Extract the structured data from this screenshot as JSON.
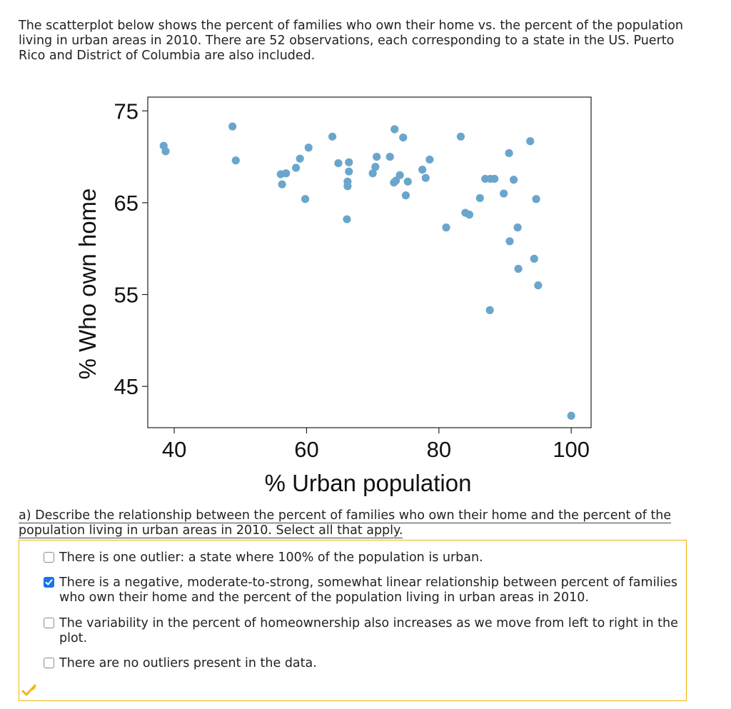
{
  "intro": {
    "text": "The scatterplot below shows the percent of families who own their home vs. the percent of the population living in urban areas in 2010. There are 52 observations, each corresponding to a state in the US. Puerto Rico and District of Columbia are also included."
  },
  "chart_data": {
    "type": "scatter",
    "title": "",
    "xlabel": "% Urban population",
    "ylabel": "% Who own home",
    "xlim": [
      36,
      103
    ],
    "ylim": [
      40.5,
      76.5
    ],
    "x_ticks": [
      40,
      60,
      80,
      100
    ],
    "y_ticks": [
      45,
      55,
      65,
      75
    ],
    "grid": false,
    "point_color": "#6aa6cc",
    "points": [
      {
        "x": 38.4,
        "y": 71.2
      },
      {
        "x": 38.7,
        "y": 70.6
      },
      {
        "x": 48.8,
        "y": 73.3
      },
      {
        "x": 49.3,
        "y": 69.6
      },
      {
        "x": 56.1,
        "y": 68.1
      },
      {
        "x": 56.3,
        "y": 67.0
      },
      {
        "x": 56.9,
        "y": 68.2
      },
      {
        "x": 58.4,
        "y": 68.8
      },
      {
        "x": 59.0,
        "y": 69.8
      },
      {
        "x": 59.8,
        "y": 65.4
      },
      {
        "x": 60.3,
        "y": 71.0
      },
      {
        "x": 63.9,
        "y": 72.2
      },
      {
        "x": 64.8,
        "y": 69.3
      },
      {
        "x": 66.1,
        "y": 63.2
      },
      {
        "x": 66.2,
        "y": 66.8
      },
      {
        "x": 66.2,
        "y": 67.3
      },
      {
        "x": 66.4,
        "y": 68.4
      },
      {
        "x": 66.4,
        "y": 69.4
      },
      {
        "x": 70.0,
        "y": 68.2
      },
      {
        "x": 70.4,
        "y": 68.9
      },
      {
        "x": 70.6,
        "y": 70.0
      },
      {
        "x": 72.6,
        "y": 70.0
      },
      {
        "x": 73.2,
        "y": 67.2
      },
      {
        "x": 73.3,
        "y": 73.0
      },
      {
        "x": 73.5,
        "y": 67.4
      },
      {
        "x": 74.1,
        "y": 68.0
      },
      {
        "x": 74.6,
        "y": 72.1
      },
      {
        "x": 75.0,
        "y": 65.8
      },
      {
        "x": 75.3,
        "y": 67.3
      },
      {
        "x": 77.5,
        "y": 68.6
      },
      {
        "x": 78.0,
        "y": 67.7
      },
      {
        "x": 78.6,
        "y": 69.7
      },
      {
        "x": 81.1,
        "y": 62.3
      },
      {
        "x": 83.3,
        "y": 72.2
      },
      {
        "x": 84.0,
        "y": 63.9
      },
      {
        "x": 84.6,
        "y": 63.7
      },
      {
        "x": 86.2,
        "y": 65.5
      },
      {
        "x": 87.0,
        "y": 67.6
      },
      {
        "x": 87.7,
        "y": 53.3
      },
      {
        "x": 87.8,
        "y": 67.6
      },
      {
        "x": 88.4,
        "y": 67.6
      },
      {
        "x": 89.8,
        "y": 66.0
      },
      {
        "x": 90.6,
        "y": 70.4
      },
      {
        "x": 90.7,
        "y": 60.8
      },
      {
        "x": 91.3,
        "y": 67.5
      },
      {
        "x": 91.9,
        "y": 62.3
      },
      {
        "x": 92.0,
        "y": 57.8
      },
      {
        "x": 93.8,
        "y": 71.7
      },
      {
        "x": 94.4,
        "y": 58.9
      },
      {
        "x": 94.7,
        "y": 65.4
      },
      {
        "x": 95.0,
        "y": 56.0
      },
      {
        "x": 100.0,
        "y": 41.8
      }
    ]
  },
  "question": {
    "text": "a) Describe the relationship between the percent of families who own their home and the percent of the population living in urban areas in 2010. Select all that apply.",
    "options": [
      {
        "label": "There is one outlier: a state where 100% of the population is urban.",
        "checked": false
      },
      {
        "label": "There is a negative, moderate-to-strong, somewhat linear relationship between percent of families who own their home and the percent of the population living in urban areas in 2010.",
        "checked": true
      },
      {
        "label": "The variability in the percent of homeownership also increases as we move from left to right in the plot.",
        "checked": false
      },
      {
        "label": "There are no outliers present in the data.",
        "checked": false
      }
    ]
  },
  "status": {
    "icon": "check-pencil-icon",
    "color": "#f2b705"
  }
}
